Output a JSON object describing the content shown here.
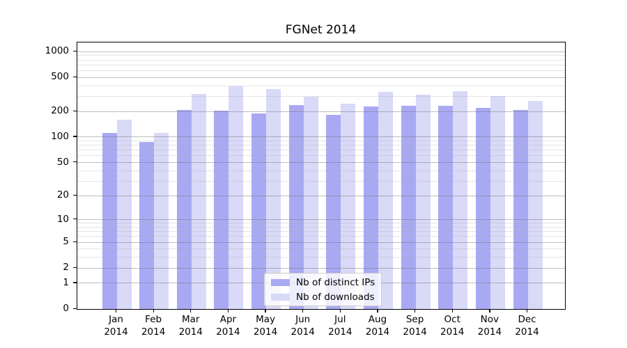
{
  "chart_data": {
    "type": "bar",
    "title": "FGNet 2014",
    "categories": [
      "Jan",
      "Feb",
      "Mar",
      "Apr",
      "May",
      "Jun",
      "Jul",
      "Aug",
      "Sep",
      "Oct",
      "Nov",
      "Dec"
    ],
    "category_year": "2014",
    "series": [
      {
        "name": "Nb of distinct IPs",
        "color": "#a9a9f3",
        "values": [
          113,
          88,
          207,
          204,
          190,
          238,
          182,
          230,
          233,
          232,
          220,
          210
        ]
      },
      {
        "name": "Nb of downloads",
        "color": "#d9d9f8",
        "values": [
          160,
          112,
          318,
          395,
          365,
          300,
          245,
          342,
          313,
          345,
          305,
          265
        ]
      }
    ],
    "yscale": "log1p",
    "ylim": [
      0,
      1280
    ],
    "ytick_labels": [
      "0",
      "1",
      "2",
      "5",
      "10",
      "20",
      "50",
      "100",
      "200",
      "500",
      "1000"
    ],
    "ytick_values": [
      0,
      1,
      2,
      5,
      10,
      20,
      50,
      100,
      200,
      500,
      1000
    ],
    "minor_gridline_values": [
      3,
      4,
      6,
      7,
      8,
      9,
      30,
      40,
      60,
      70,
      80,
      90,
      300,
      400,
      600,
      700,
      800,
      900
    ],
    "grid": "horizontal",
    "legend": {
      "position": "lower center",
      "entries": [
        "Nb of distinct IPs",
        "Nb of downloads"
      ]
    }
  },
  "colors": {
    "background": "#ffffff",
    "axis": "#000000",
    "grid_major": "#9a9a9a",
    "grid_minor": "#dedede",
    "legend_border": "#cccccc"
  }
}
